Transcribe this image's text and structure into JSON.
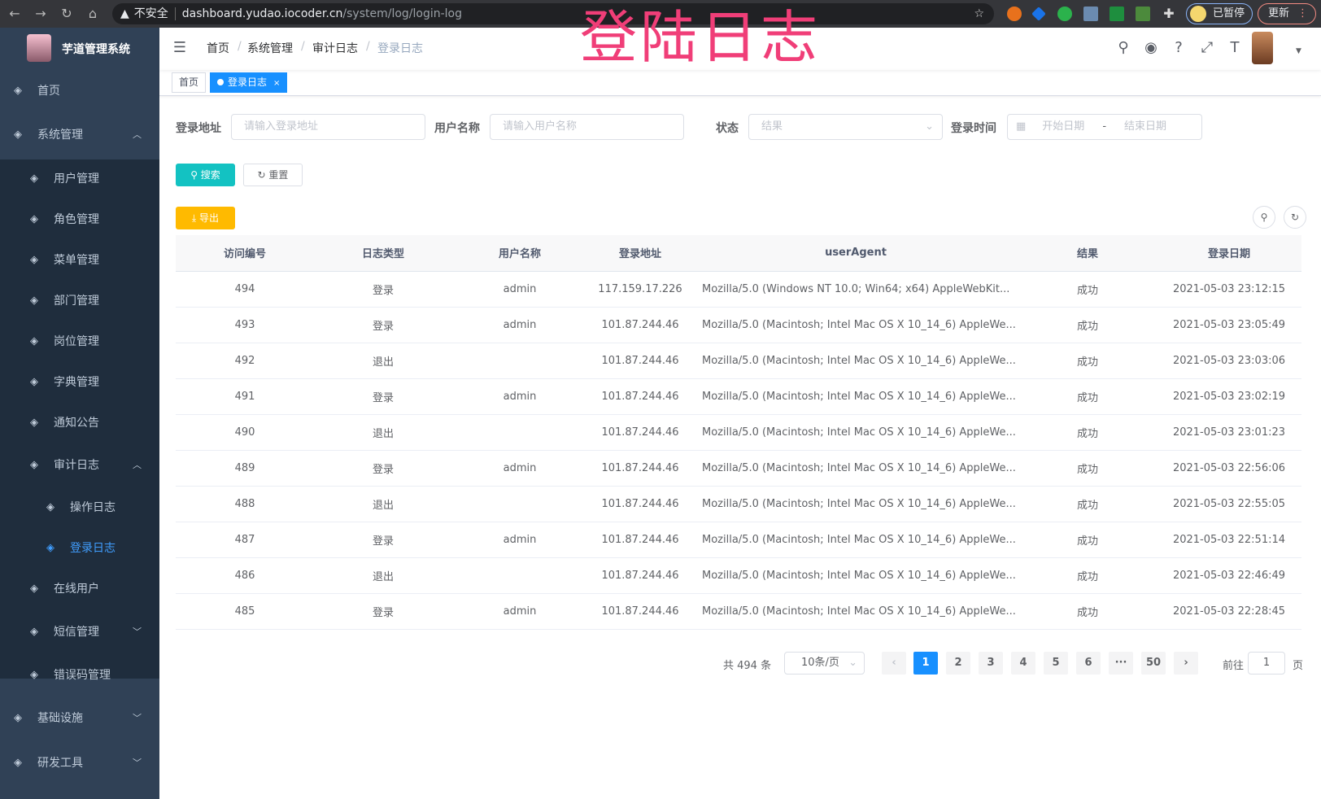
{
  "browser": {
    "url_warning": "不安全",
    "url_host": "dashboard.yudao.iocoder.cn",
    "url_path": "/system/log/login-log",
    "paused_label": "已暂停",
    "update_label": "更新"
  },
  "overlay_title": "登陆日志",
  "sidebar": {
    "app_name": "芋道管理系统",
    "items": [
      {
        "label": "首页",
        "icon": "dashboard-icon"
      },
      {
        "label": "系统管理",
        "icon": "gear-icon",
        "expanded": true
      },
      {
        "label": "用户管理",
        "icon": "user-icon"
      },
      {
        "label": "角色管理",
        "icon": "peoples-icon"
      },
      {
        "label": "菜单管理",
        "icon": "tree-table-icon"
      },
      {
        "label": "部门管理",
        "icon": "tree-icon"
      },
      {
        "label": "岗位管理",
        "icon": "post-icon"
      },
      {
        "label": "字典管理",
        "icon": "dict-icon"
      },
      {
        "label": "通知公告",
        "icon": "message-icon"
      },
      {
        "label": "审计日志",
        "icon": "log-icon",
        "expanded": true
      },
      {
        "label": "操作日志",
        "icon": "form-icon"
      },
      {
        "label": "登录日志",
        "icon": "logininfor-icon",
        "active": true
      },
      {
        "label": "在线用户",
        "icon": "online-icon"
      },
      {
        "label": "短信管理",
        "icon": "validcode-icon"
      },
      {
        "label": "错误码管理",
        "icon": "code-icon"
      },
      {
        "label": "基础设施",
        "icon": "monitor-icon"
      },
      {
        "label": "研发工具",
        "icon": "tool-icon"
      }
    ]
  },
  "breadcrumb": [
    "首页",
    "系统管理",
    "审计日志",
    "登录日志"
  ],
  "tags": [
    {
      "label": "首页"
    },
    {
      "label": "登录日志",
      "active": true,
      "close": "×"
    }
  ],
  "filters": {
    "ip": {
      "label": "登录地址",
      "placeholder": "请输入登录地址"
    },
    "username": {
      "label": "用户名称",
      "placeholder": "请输入用户名称"
    },
    "status": {
      "label": "状态",
      "placeholder": "结果"
    },
    "time": {
      "label": "登录时间",
      "start_placeholder": "开始日期",
      "separator": "-",
      "end_placeholder": "结束日期"
    }
  },
  "buttons": {
    "search": "搜索",
    "reset": "重置",
    "export": "导出"
  },
  "table": {
    "columns": [
      "访问编号",
      "日志类型",
      "用户名称",
      "登录地址",
      "userAgent",
      "结果",
      "登录日期"
    ],
    "rows": [
      [
        "494",
        "登录",
        "admin",
        "117.159.17.226",
        "Mozilla/5.0 (Windows NT 10.0; Win64; x64) AppleWebKit...",
        "成功",
        "2021-05-03 23:12:15"
      ],
      [
        "493",
        "登录",
        "admin",
        "101.87.244.46",
        "Mozilla/5.0 (Macintosh; Intel Mac OS X 10_14_6) AppleWe...",
        "成功",
        "2021-05-03 23:05:49"
      ],
      [
        "492",
        "退出",
        "",
        "101.87.244.46",
        "Mozilla/5.0 (Macintosh; Intel Mac OS X 10_14_6) AppleWe...",
        "成功",
        "2021-05-03 23:03:06"
      ],
      [
        "491",
        "登录",
        "admin",
        "101.87.244.46",
        "Mozilla/5.0 (Macintosh; Intel Mac OS X 10_14_6) AppleWe...",
        "成功",
        "2021-05-03 23:02:19"
      ],
      [
        "490",
        "退出",
        "",
        "101.87.244.46",
        "Mozilla/5.0 (Macintosh; Intel Mac OS X 10_14_6) AppleWe...",
        "成功",
        "2021-05-03 23:01:23"
      ],
      [
        "489",
        "登录",
        "admin",
        "101.87.244.46",
        "Mozilla/5.0 (Macintosh; Intel Mac OS X 10_14_6) AppleWe...",
        "成功",
        "2021-05-03 22:56:06"
      ],
      [
        "488",
        "退出",
        "",
        "101.87.244.46",
        "Mozilla/5.0 (Macintosh; Intel Mac OS X 10_14_6) AppleWe...",
        "成功",
        "2021-05-03 22:55:05"
      ],
      [
        "487",
        "登录",
        "admin",
        "101.87.244.46",
        "Mozilla/5.0 (Macintosh; Intel Mac OS X 10_14_6) AppleWe...",
        "成功",
        "2021-05-03 22:51:14"
      ],
      [
        "486",
        "退出",
        "",
        "101.87.244.46",
        "Mozilla/5.0 (Macintosh; Intel Mac OS X 10_14_6) AppleWe...",
        "成功",
        "2021-05-03 22:46:49"
      ],
      [
        "485",
        "登录",
        "admin",
        "101.87.244.46",
        "Mozilla/5.0 (Macintosh; Intel Mac OS X 10_14_6) AppleWe...",
        "成功",
        "2021-05-03 22:28:45"
      ]
    ]
  },
  "pagination": {
    "total": "共 494 条",
    "page_size": "10条/页",
    "pages": [
      "1",
      "2",
      "3",
      "4",
      "5",
      "6",
      "···",
      "50"
    ],
    "current": "1",
    "goto_label": "前往",
    "goto_value": "1",
    "goto_suffix": "页"
  },
  "colors": {
    "accent": "#1890ff",
    "sidebar": "#304156",
    "submenu": "#1f2d3d",
    "search_button": "#13c2c2",
    "export_button": "#ffba00",
    "overlay": "#f03e78"
  }
}
